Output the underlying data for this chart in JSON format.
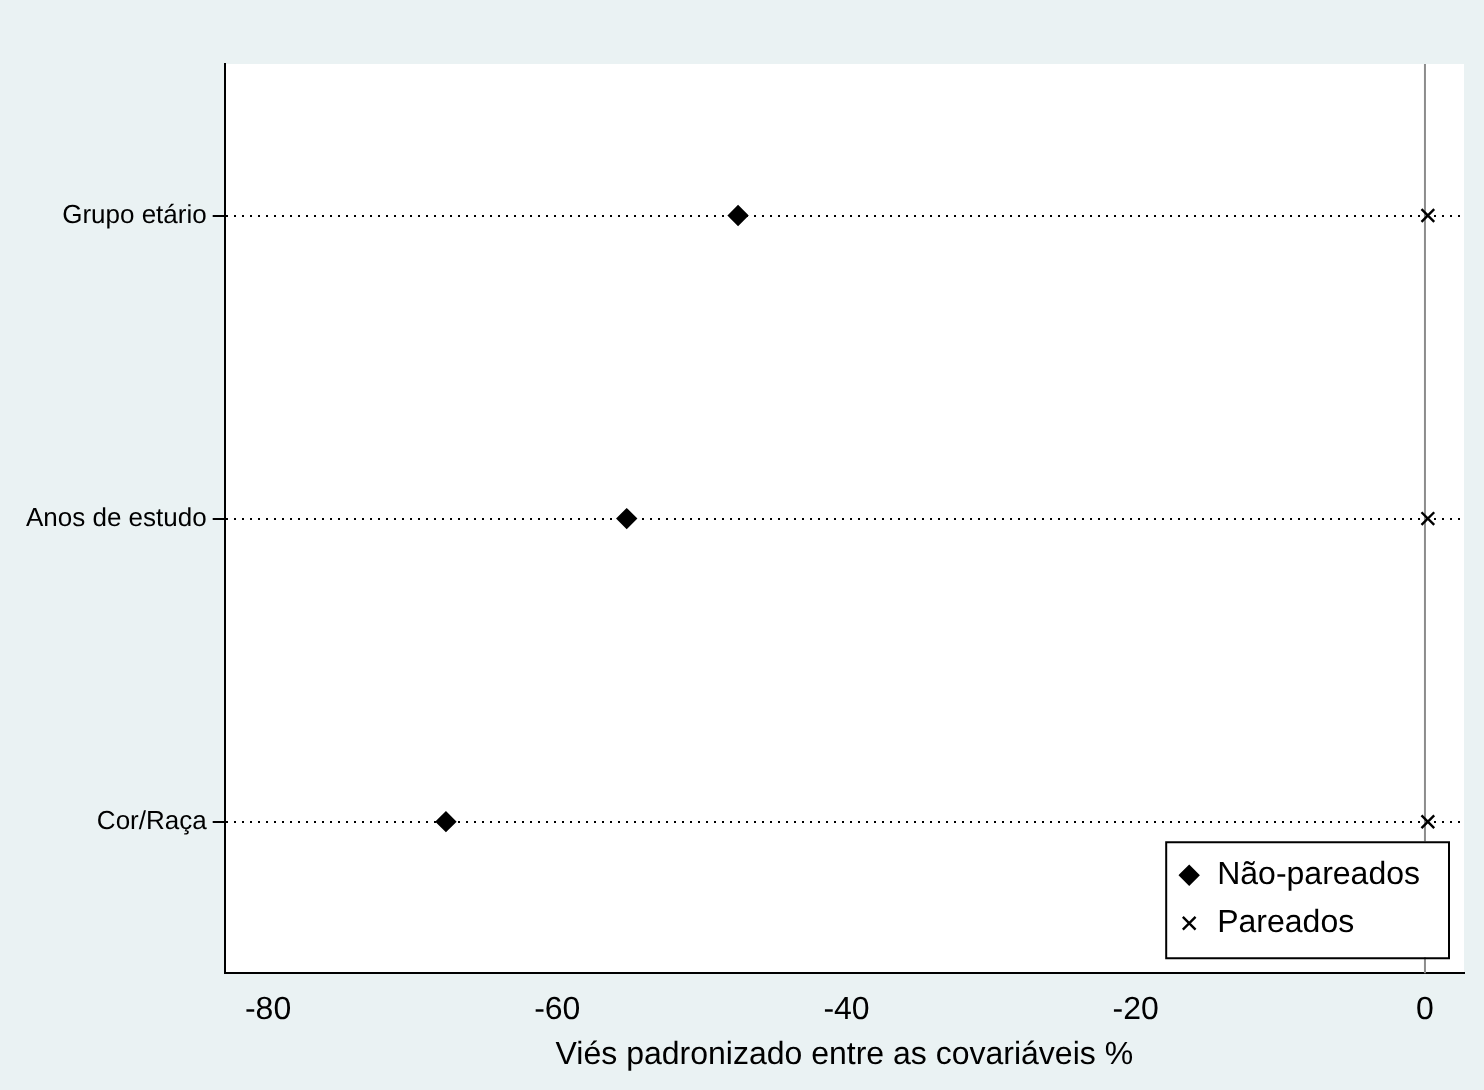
{
  "chart_data": {
    "type": "scatter",
    "xlabel": "Viés padronizado entre as covariáveis %",
    "categories": [
      "Grupo etário",
      "Anos de estudo",
      "Cor/Raça"
    ],
    "series": [
      {
        "name": "Não-pareados",
        "color": "#000000",
        "marker": "diamond",
        "values": [
          -47.5,
          -55.2,
          -67.7
        ]
      },
      {
        "name": "Pareados",
        "color": "#000000",
        "marker": "cross",
        "values": [
          0.2,
          0.2,
          0.2
        ]
      }
    ],
    "xlim": [
      -83,
      2.7
    ],
    "xticks": [
      -80,
      -60,
      -40,
      -20,
      0
    ],
    "ref_lines": [
      {
        "axis": "x",
        "value": 0,
        "color": "#8c8c8c"
      }
    ],
    "orientation": "horizontal",
    "grid": "y",
    "line_style": "dotted",
    "legend": "bottom right"
  }
}
